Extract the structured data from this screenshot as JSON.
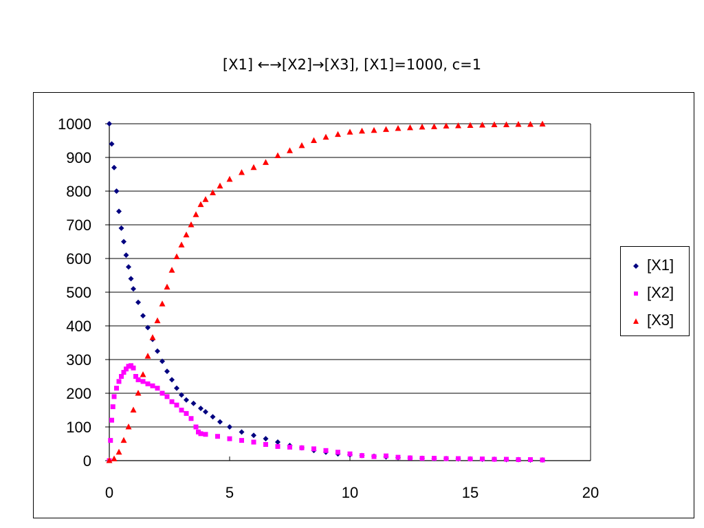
{
  "chart_data": {
    "type": "scatter",
    "title": "[X1] ←→[X2]→[X3], [X1]=1000, c=1",
    "xlabel": "",
    "ylabel": "",
    "xlim": [
      0,
      20
    ],
    "ylim": [
      0,
      1000
    ],
    "xticks": [
      0,
      5,
      10,
      15,
      20
    ],
    "yticks": [
      0,
      100,
      200,
      300,
      400,
      500,
      600,
      700,
      800,
      900,
      1000
    ],
    "grid": "horizontal",
    "legend_position": "right",
    "series": [
      {
        "name": "[X1]",
        "marker": "diamond",
        "color": "#000080",
        "x": [
          0,
          0.1,
          0.2,
          0.3,
          0.4,
          0.5,
          0.6,
          0.7,
          0.8,
          0.9,
          1.0,
          1.2,
          1.4,
          1.6,
          1.8,
          2.0,
          2.2,
          2.4,
          2.6,
          2.8,
          3.0,
          3.2,
          3.5,
          3.8,
          4.0,
          4.3,
          4.6,
          5.0,
          5.5,
          6.0,
          6.5,
          7.0,
          7.5,
          8.0,
          8.5,
          9.0,
          9.5,
          10.0,
          10.5,
          11.0,
          11.5,
          12.0,
          12.5,
          13.0,
          13.5,
          14.0,
          14.5,
          15.0,
          15.5,
          16.0,
          16.5,
          17.0,
          17.5,
          18.0
        ],
        "y": [
          1000,
          940,
          870,
          800,
          740,
          690,
          650,
          610,
          575,
          540,
          510,
          470,
          430,
          395,
          360,
          325,
          295,
          265,
          240,
          215,
          195,
          180,
          170,
          155,
          145,
          130,
          115,
          100,
          85,
          75,
          65,
          55,
          45,
          38,
          30,
          25,
          20,
          17,
          15,
          13,
          11,
          9,
          8,
          7,
          6,
          6,
          5,
          5,
          4,
          4,
          3,
          3,
          2,
          2
        ]
      },
      {
        "name": "[X2]",
        "marker": "square",
        "color": "#ff00ff",
        "x": [
          0,
          0.05,
          0.1,
          0.15,
          0.2,
          0.3,
          0.4,
          0.5,
          0.6,
          0.7,
          0.8,
          0.9,
          1.0,
          1.1,
          1.2,
          1.4,
          1.6,
          1.8,
          2.0,
          2.2,
          2.4,
          2.6,
          2.8,
          3.0,
          3.2,
          3.4,
          3.6,
          3.7,
          3.8,
          4.0,
          4.5,
          5.0,
          5.5,
          6.0,
          6.5,
          7.0,
          7.5,
          8.0,
          8.5,
          9.0,
          9.5,
          10.0,
          10.5,
          11.0,
          11.5,
          12.0,
          12.5,
          13.0,
          13.5,
          14.0,
          14.5,
          15.0,
          15.5,
          16.0,
          16.5,
          17.0,
          17.5,
          18.0
        ],
        "y": [
          0,
          60,
          120,
          160,
          190,
          215,
          235,
          250,
          262,
          272,
          280,
          282,
          275,
          250,
          240,
          235,
          228,
          222,
          215,
          200,
          190,
          175,
          165,
          150,
          140,
          125,
          100,
          85,
          80,
          78,
          72,
          65,
          60,
          55,
          48,
          42,
          40,
          38,
          35,
          30,
          25,
          20,
          15,
          12,
          14,
          10,
          8,
          7,
          7,
          6,
          6,
          5,
          5,
          4,
          4,
          3,
          3,
          2
        ]
      },
      {
        "name": "[X3]",
        "marker": "triangle",
        "color": "#ff0000",
        "x": [
          0,
          0.2,
          0.4,
          0.6,
          0.8,
          1.0,
          1.2,
          1.4,
          1.6,
          1.8,
          2.0,
          2.2,
          2.4,
          2.6,
          2.8,
          3.0,
          3.2,
          3.4,
          3.6,
          3.8,
          4.0,
          4.3,
          4.6,
          5.0,
          5.5,
          6.0,
          6.5,
          7.0,
          7.5,
          8.0,
          8.5,
          9.0,
          9.5,
          10.0,
          10.5,
          11.0,
          11.5,
          12.0,
          12.5,
          13.0,
          13.5,
          14.0,
          14.5,
          15.0,
          15.5,
          16.0,
          16.5,
          17.0,
          17.5,
          18.0
        ],
        "y": [
          0,
          5,
          25,
          60,
          100,
          150,
          200,
          255,
          310,
          365,
          415,
          465,
          515,
          565,
          605,
          640,
          670,
          700,
          730,
          760,
          775,
          795,
          815,
          835,
          855,
          870,
          885,
          905,
          920,
          935,
          950,
          960,
          968,
          975,
          978,
          980,
          983,
          986,
          988,
          990,
          991,
          993,
          994,
          995,
          996,
          997,
          997,
          998,
          998,
          999
        ]
      }
    ]
  }
}
